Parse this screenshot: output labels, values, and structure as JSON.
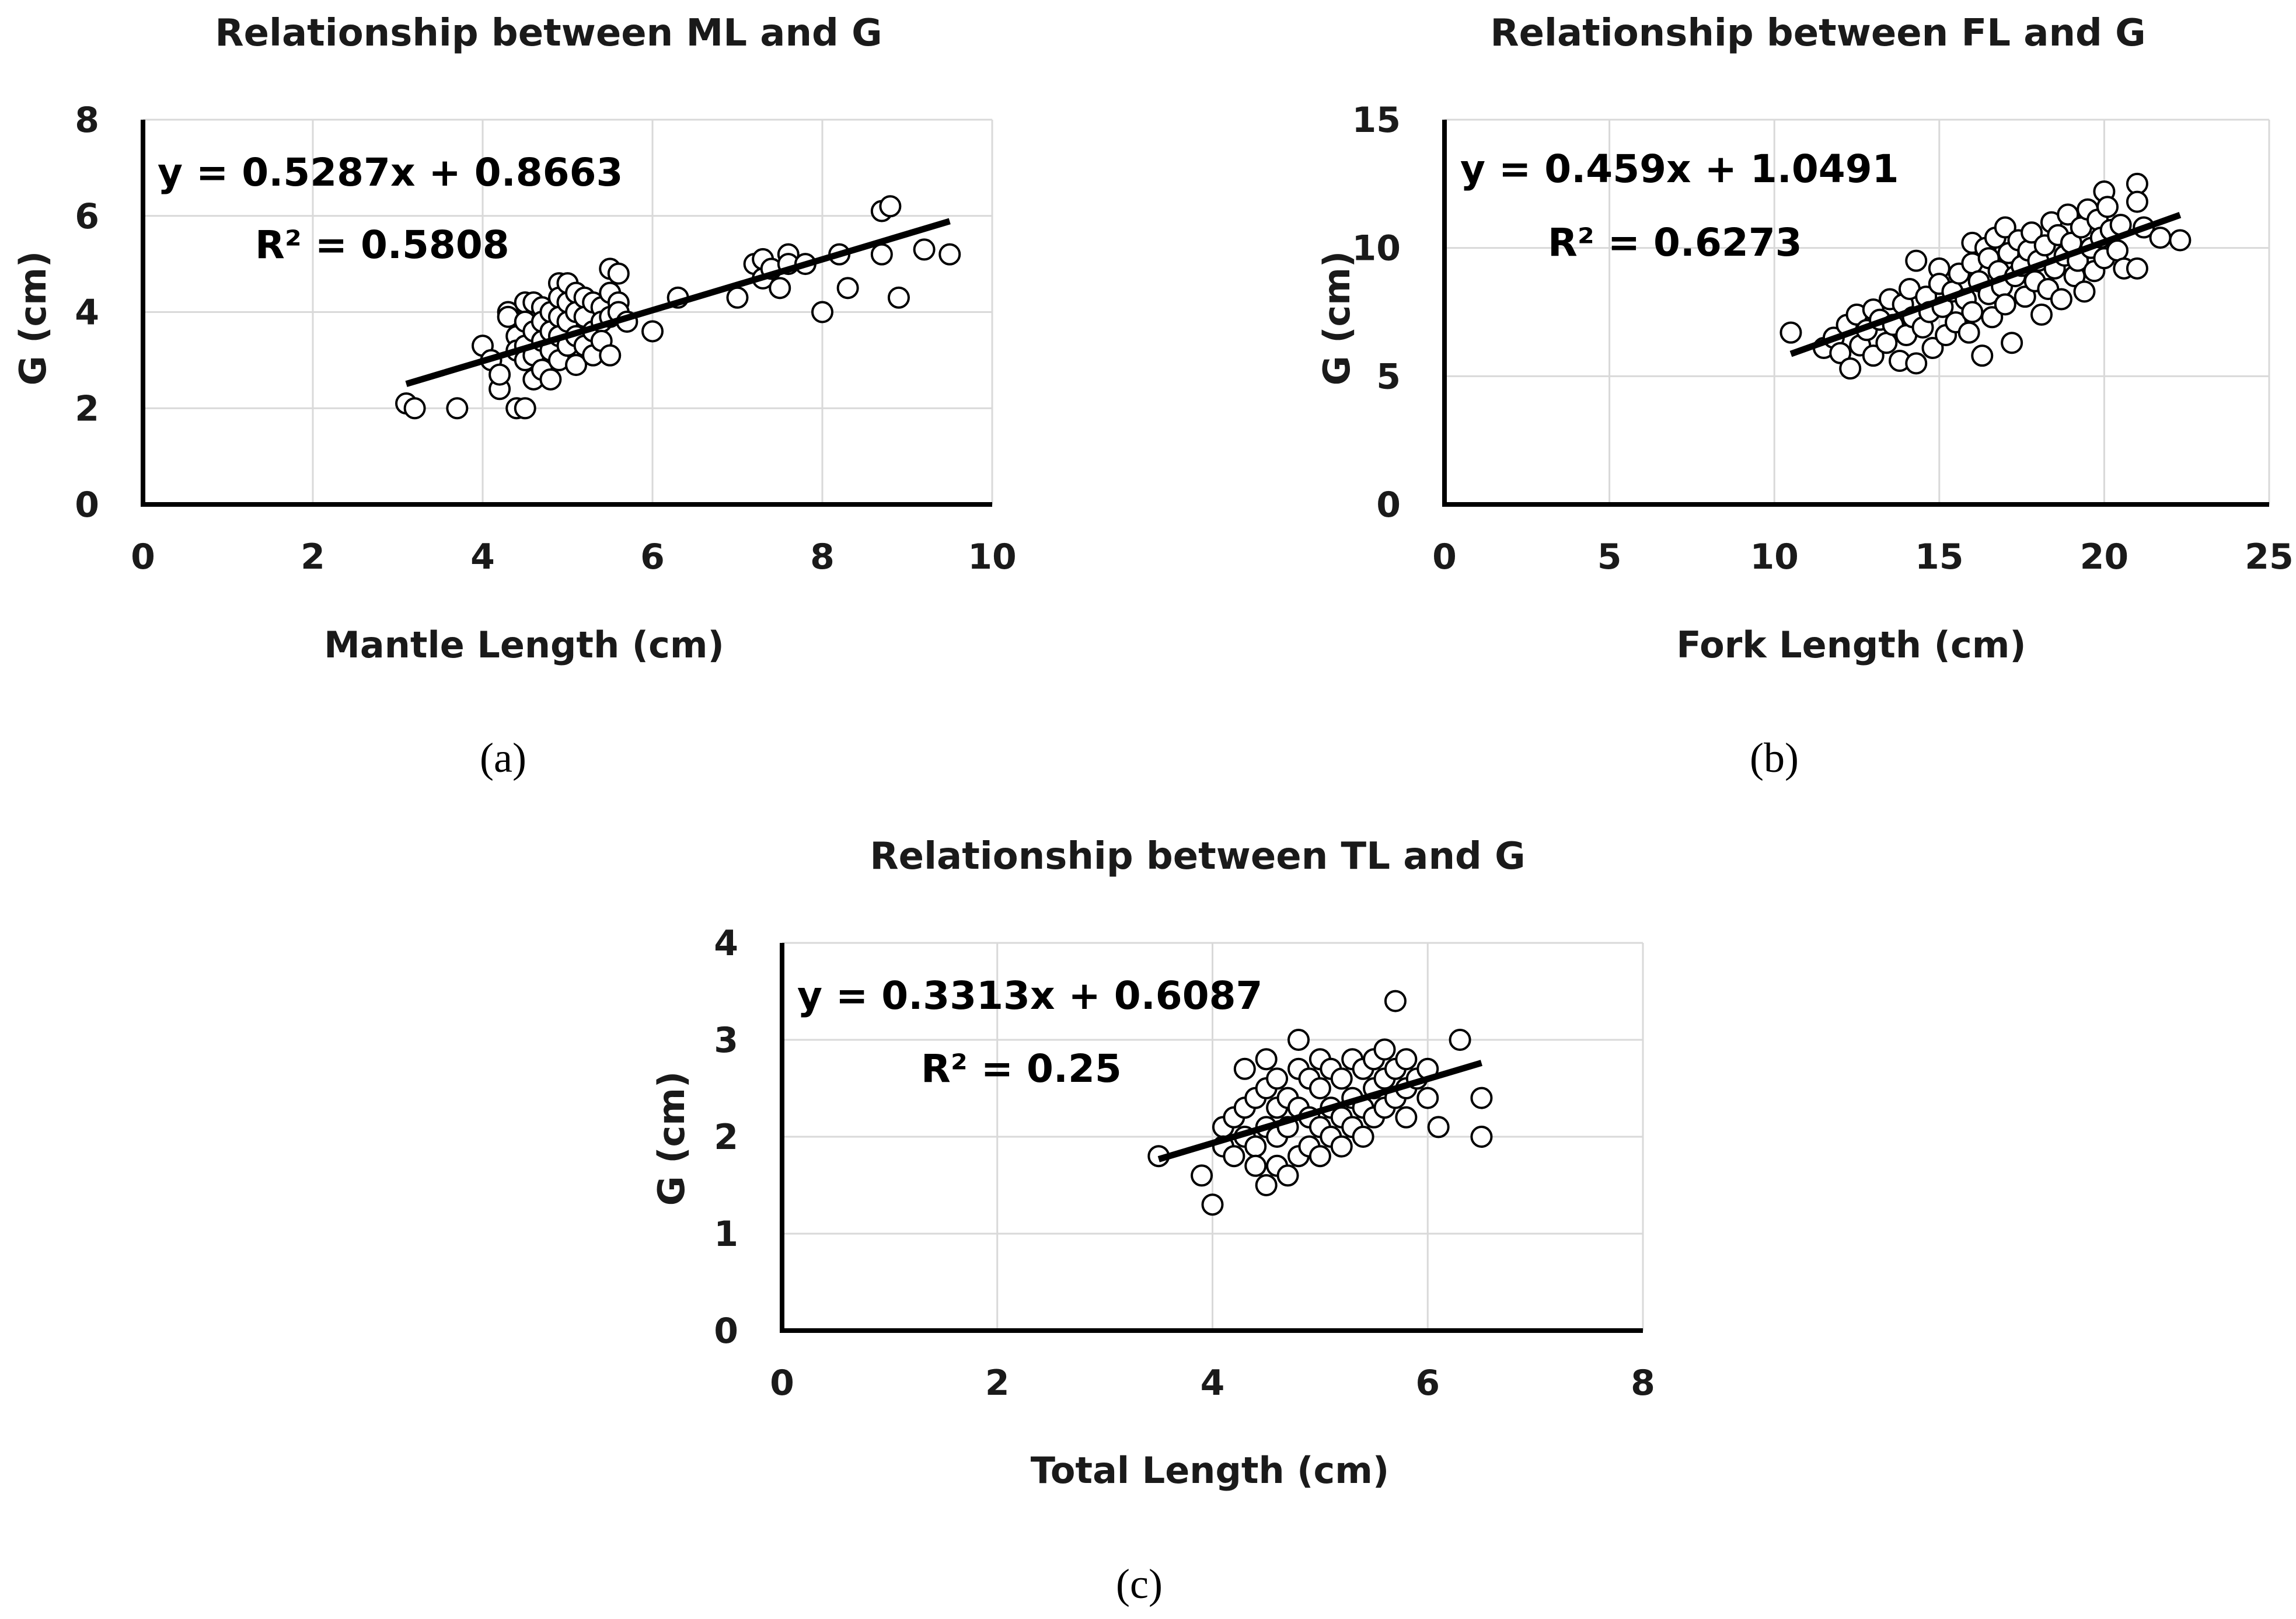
{
  "chart_data": [
    {
      "id": "a",
      "type": "scatter",
      "title": "Relationship between ML and G",
      "xlabel": "Mantle Length (cm)",
      "ylabel": "G (cm)",
      "xlim": [
        0,
        10
      ],
      "ylim": [
        0,
        8
      ],
      "xticks": [
        0,
        2,
        4,
        6,
        8,
        10
      ],
      "yticks": [
        0,
        2,
        4,
        6,
        8
      ],
      "xtick_labels": [
        "0",
        "2",
        "4",
        "6",
        "8",
        "10"
      ],
      "ytick_labels": [
        "0",
        "2",
        "4",
        "6",
        "8"
      ],
      "grid": true,
      "trendline": {
        "slope": 0.5287,
        "intercept": 0.8663,
        "x_range": [
          3.1,
          9.5
        ]
      },
      "equation": "y = 0.5287x + 0.8663",
      "r_squared": "R² = 0.5808",
      "panel_label": "(a)",
      "points": [
        [
          3.1,
          2.1
        ],
        [
          3.2,
          2.0
        ],
        [
          3.7,
          2.0
        ],
        [
          4.0,
          3.3
        ],
        [
          4.1,
          3.0
        ],
        [
          4.2,
          2.4
        ],
        [
          4.2,
          2.7
        ],
        [
          4.3,
          4.0
        ],
        [
          4.3,
          3.9
        ],
        [
          4.4,
          3.5
        ],
        [
          4.4,
          3.2
        ],
        [
          4.4,
          2.0
        ],
        [
          4.5,
          4.2
        ],
        [
          4.5,
          3.8
        ],
        [
          4.5,
          3.3
        ],
        [
          4.5,
          3.0
        ],
        [
          4.5,
          2.0
        ],
        [
          4.6,
          4.2
        ],
        [
          4.6,
          3.6
        ],
        [
          4.6,
          3.1
        ],
        [
          4.6,
          2.6
        ],
        [
          4.7,
          4.1
        ],
        [
          4.7,
          3.8
        ],
        [
          4.7,
          3.4
        ],
        [
          4.7,
          2.8
        ],
        [
          4.8,
          4.0
        ],
        [
          4.8,
          3.6
        ],
        [
          4.8,
          3.2
        ],
        [
          4.8,
          2.6
        ],
        [
          4.9,
          4.6
        ],
        [
          4.9,
          4.3
        ],
        [
          4.9,
          3.9
        ],
        [
          4.9,
          3.5
        ],
        [
          4.9,
          3.0
        ],
        [
          5.0,
          4.6
        ],
        [
          5.0,
          4.2
        ],
        [
          5.0,
          3.8
        ],
        [
          5.0,
          3.3
        ],
        [
          5.1,
          4.4
        ],
        [
          5.1,
          4.0
        ],
        [
          5.1,
          3.5
        ],
        [
          5.1,
          2.9
        ],
        [
          5.2,
          4.3
        ],
        [
          5.2,
          3.9
        ],
        [
          5.2,
          3.3
        ],
        [
          5.3,
          4.2
        ],
        [
          5.3,
          3.6
        ],
        [
          5.3,
          3.1
        ],
        [
          5.4,
          4.1
        ],
        [
          5.4,
          3.8
        ],
        [
          5.4,
          3.4
        ],
        [
          5.5,
          4.9
        ],
        [
          5.5,
          4.4
        ],
        [
          5.5,
          3.9
        ],
        [
          5.5,
          3.1
        ],
        [
          5.6,
          4.8
        ],
        [
          5.6,
          4.2
        ],
        [
          5.6,
          4.0
        ],
        [
          5.7,
          3.8
        ],
        [
          6.0,
          3.6
        ],
        [
          6.3,
          4.3
        ],
        [
          7.0,
          4.3
        ],
        [
          7.2,
          5.0
        ],
        [
          7.3,
          5.1
        ],
        [
          7.3,
          4.7
        ],
        [
          7.4,
          4.9
        ],
        [
          7.5,
          4.5
        ],
        [
          7.6,
          5.2
        ],
        [
          7.6,
          5.0
        ],
        [
          7.8,
          5.0
        ],
        [
          8.0,
          4.0
        ],
        [
          8.2,
          5.2
        ],
        [
          8.3,
          4.5
        ],
        [
          8.7,
          6.1
        ],
        [
          8.7,
          5.2
        ],
        [
          8.8,
          6.2
        ],
        [
          8.9,
          4.3
        ],
        [
          9.2,
          5.3
        ],
        [
          9.5,
          5.2
        ]
      ]
    },
    {
      "id": "b",
      "type": "scatter",
      "title": "Relationship between FL and G",
      "xlabel": "Fork Length (cm)",
      "ylabel": "G (cm)",
      "xlim": [
        0,
        25
      ],
      "ylim": [
        0,
        15
      ],
      "xticks": [
        0,
        5,
        10,
        15,
        20,
        25
      ],
      "yticks": [
        0,
        5,
        10,
        15
      ],
      "xtick_labels": [
        "0",
        "5",
        "10",
        "15",
        "20",
        "25"
      ],
      "ytick_labels": [
        "0",
        "5",
        "10",
        "15"
      ],
      "grid": true,
      "trendline": {
        "slope": 0.459,
        "intercept": 1.0491,
        "x_range": [
          10.5,
          22.3
        ]
      },
      "equation": "y = 0.459x + 1.0491",
      "r_squared": "R² = 0.6273",
      "panel_label": "(b)",
      "points": [
        [
          10.5,
          6.7
        ],
        [
          11.5,
          6.1
        ],
        [
          11.8,
          6.5
        ],
        [
          12.0,
          5.9
        ],
        [
          12.2,
          7.0
        ],
        [
          12.3,
          5.3
        ],
        [
          12.5,
          7.4
        ],
        [
          12.6,
          6.2
        ],
        [
          12.8,
          6.8
        ],
        [
          13.0,
          7.6
        ],
        [
          13.0,
          5.8
        ],
        [
          13.2,
          7.2
        ],
        [
          13.4,
          6.3
        ],
        [
          13.5,
          8.0
        ],
        [
          13.6,
          7.0
        ],
        [
          13.8,
          5.6
        ],
        [
          13.9,
          7.8
        ],
        [
          14.0,
          6.6
        ],
        [
          14.1,
          8.4
        ],
        [
          14.2,
          7.3
        ],
        [
          14.3,
          9.5
        ],
        [
          14.3,
          5.5
        ],
        [
          14.5,
          6.9
        ],
        [
          14.6,
          8.1
        ],
        [
          14.7,
          7.5
        ],
        [
          14.8,
          6.1
        ],
        [
          15.0,
          9.2
        ],
        [
          15.0,
          8.6
        ],
        [
          15.1,
          7.7
        ],
        [
          15.2,
          6.6
        ],
        [
          15.4,
          8.3
        ],
        [
          15.5,
          7.1
        ],
        [
          15.6,
          9.0
        ],
        [
          15.8,
          8.0
        ],
        [
          15.9,
          6.7
        ],
        [
          16.0,
          10.2
        ],
        [
          16.0,
          9.4
        ],
        [
          16.0,
          7.5
        ],
        [
          16.2,
          8.7
        ],
        [
          16.3,
          5.8
        ],
        [
          16.4,
          10.0
        ],
        [
          16.5,
          9.6
        ],
        [
          16.5,
          8.2
        ],
        [
          16.6,
          7.3
        ],
        [
          16.7,
          10.4
        ],
        [
          16.8,
          9.1
        ],
        [
          16.9,
          8.5
        ],
        [
          17.0,
          10.8
        ],
        [
          17.0,
          7.8
        ],
        [
          17.1,
          9.8
        ],
        [
          17.2,
          6.3
        ],
        [
          17.3,
          8.9
        ],
        [
          17.4,
          10.3
        ],
        [
          17.5,
          9.3
        ],
        [
          17.6,
          8.1
        ],
        [
          17.7,
          9.9
        ],
        [
          17.8,
          10.6
        ],
        [
          17.9,
          8.7
        ],
        [
          18.0,
          9.5
        ],
        [
          18.1,
          7.4
        ],
        [
          18.2,
          10.1
        ],
        [
          18.3,
          8.4
        ],
        [
          18.4,
          11.0
        ],
        [
          18.5,
          9.2
        ],
        [
          18.6,
          10.5
        ],
        [
          18.7,
          8.0
        ],
        [
          18.8,
          9.7
        ],
        [
          18.9,
          11.3
        ],
        [
          19.0,
          10.2
        ],
        [
          19.1,
          8.9
        ],
        [
          19.2,
          9.5
        ],
        [
          19.3,
          10.8
        ],
        [
          19.4,
          8.3
        ],
        [
          19.5,
          11.5
        ],
        [
          19.6,
          10.0
        ],
        [
          19.7,
          9.1
        ],
        [
          19.8,
          11.1
        ],
        [
          19.9,
          10.4
        ],
        [
          20.0,
          12.2
        ],
        [
          20.0,
          9.6
        ],
        [
          20.1,
          11.6
        ],
        [
          20.2,
          10.7
        ],
        [
          20.4,
          9.9
        ],
        [
          20.5,
          10.9
        ],
        [
          20.6,
          9.2
        ],
        [
          21.0,
          12.5
        ],
        [
          21.0,
          11.8
        ],
        [
          21.0,
          9.2
        ],
        [
          21.2,
          10.8
        ],
        [
          21.7,
          10.4
        ],
        [
          22.3,
          10.3
        ]
      ]
    },
    {
      "id": "c",
      "type": "scatter",
      "title": "Relationship between TL and G",
      "xlabel": "Total Length (cm)",
      "ylabel": "G (cm)",
      "xlim": [
        0,
        8
      ],
      "ylim": [
        0,
        4
      ],
      "xticks": [
        0,
        2,
        4,
        6,
        8
      ],
      "yticks": [
        0,
        1,
        2,
        3,
        4
      ],
      "xtick_labels": [
        "0",
        "2",
        "4",
        "6",
        "8"
      ],
      "ytick_labels": [
        "0",
        "1",
        "2",
        "3",
        "4"
      ],
      "grid": true,
      "trendline": {
        "slope": 0.3313,
        "intercept": 0.6087,
        "x_range": [
          3.5,
          6.5
        ]
      },
      "equation": "y = 0.3313x + 0.6087",
      "r_squared": "R² = 0.25",
      "panel_label": "(c)",
      "points": [
        [
          3.5,
          1.8
        ],
        [
          3.9,
          1.6
        ],
        [
          4.0,
          1.3
        ],
        [
          4.1,
          2.1
        ],
        [
          4.1,
          1.9
        ],
        [
          4.2,
          2.2
        ],
        [
          4.2,
          1.8
        ],
        [
          4.3,
          2.7
        ],
        [
          4.3,
          2.3
        ],
        [
          4.3,
          2.0
        ],
        [
          4.4,
          2.4
        ],
        [
          4.4,
          1.9
        ],
        [
          4.4,
          1.7
        ],
        [
          4.5,
          2.8
        ],
        [
          4.5,
          2.5
        ],
        [
          4.5,
          2.1
        ],
        [
          4.5,
          1.5
        ],
        [
          4.6,
          2.6
        ],
        [
          4.6,
          2.3
        ],
        [
          4.6,
          2.0
        ],
        [
          4.6,
          1.7
        ],
        [
          4.7,
          2.4
        ],
        [
          4.7,
          2.1
        ],
        [
          4.7,
          1.6
        ],
        [
          4.8,
          3.0
        ],
        [
          4.8,
          2.7
        ],
        [
          4.8,
          2.3
        ],
        [
          4.8,
          1.8
        ],
        [
          4.9,
          2.6
        ],
        [
          4.9,
          2.2
        ],
        [
          4.9,
          1.9
        ],
        [
          5.0,
          2.8
        ],
        [
          5.0,
          2.5
        ],
        [
          5.0,
          2.1
        ],
        [
          5.0,
          1.8
        ],
        [
          5.1,
          2.7
        ],
        [
          5.1,
          2.3
        ],
        [
          5.1,
          2.0
        ],
        [
          5.2,
          2.6
        ],
        [
          5.2,
          2.2
        ],
        [
          5.2,
          1.9
        ],
        [
          5.3,
          2.8
        ],
        [
          5.3,
          2.4
        ],
        [
          5.3,
          2.1
        ],
        [
          5.4,
          2.7
        ],
        [
          5.4,
          2.3
        ],
        [
          5.4,
          2.0
        ],
        [
          5.5,
          2.8
        ],
        [
          5.5,
          2.5
        ],
        [
          5.5,
          2.2
        ],
        [
          5.6,
          2.9
        ],
        [
          5.6,
          2.6
        ],
        [
          5.6,
          2.3
        ],
        [
          5.7,
          3.4
        ],
        [
          5.7,
          2.7
        ],
        [
          5.7,
          2.4
        ],
        [
          5.8,
          2.8
        ],
        [
          5.8,
          2.5
        ],
        [
          5.8,
          2.2
        ],
        [
          5.9,
          2.6
        ],
        [
          6.0,
          2.7
        ],
        [
          6.0,
          2.4
        ],
        [
          6.1,
          2.1
        ],
        [
          6.3,
          3.0
        ],
        [
          6.5,
          2.4
        ],
        [
          6.5,
          2.0
        ]
      ]
    }
  ]
}
